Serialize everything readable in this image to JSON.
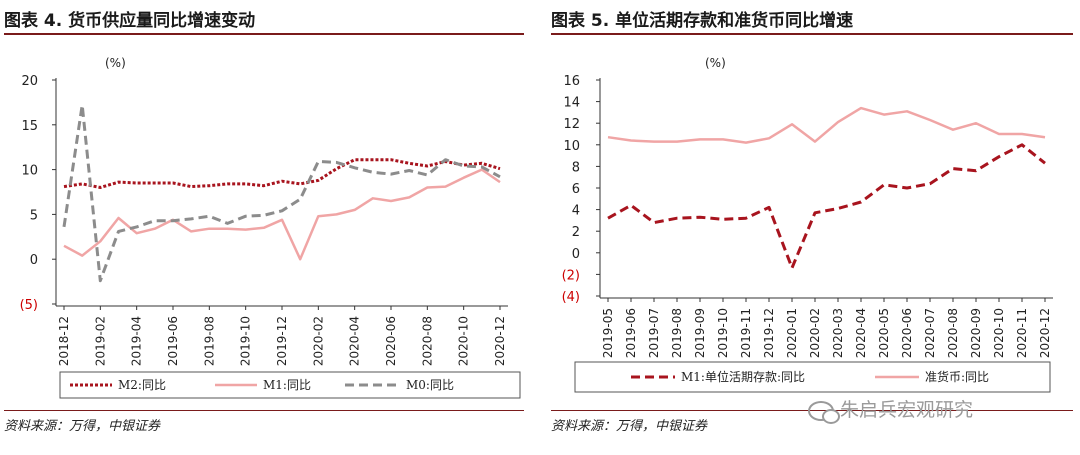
{
  "left_panel": {
    "title": "图表 4. 货币供应量同比增速变动",
    "source": "资料来源：万得，中银证券"
  },
  "right_panel": {
    "title": "图表 5. 单位活期存款和准货币同比增速",
    "source": "资料来源：万得，中银证券"
  },
  "watermark": "朱启兵宏观研究",
  "colors": {
    "dark_red": "#a8141e",
    "pink": "#f0a5a5",
    "gray": "#8c8c8c",
    "negative_label": "#cc0000",
    "rule": "#7a1b1b"
  },
  "chart_data": [
    {
      "type": "line",
      "unit_label": "(%)",
      "ylim": [
        -5,
        20
      ],
      "yticks": [
        20,
        15,
        10,
        5,
        0,
        -5
      ],
      "ytick_labels": [
        "20",
        "15",
        "10",
        "5",
        "0",
        "(5)"
      ],
      "grid": false,
      "legend_position": "bottom",
      "x": [
        "2018-12",
        "2019-01",
        "2019-02",
        "2019-03",
        "2019-04",
        "2019-05",
        "2019-06",
        "2019-07",
        "2019-08",
        "2019-09",
        "2019-10",
        "2019-11",
        "2019-12",
        "2020-01",
        "2020-02",
        "2020-03",
        "2020-04",
        "2020-05",
        "2020-06",
        "2020-07",
        "2020-08",
        "2020-09",
        "2020-10",
        "2020-11",
        "2020-12"
      ],
      "xtick_labels": [
        "2018-12",
        "2019-02",
        "2019-04",
        "2019-06",
        "2019-08",
        "2019-10",
        "2019-12",
        "2020-02",
        "2020-04",
        "2020-06",
        "2020-08",
        "2020-10",
        "2020-12"
      ],
      "series": [
        {
          "name": "M2:同比",
          "style": "dotted",
          "color": "#a8141e",
          "values": [
            8.1,
            8.4,
            8.0,
            8.6,
            8.5,
            8.5,
            8.5,
            8.1,
            8.2,
            8.4,
            8.4,
            8.2,
            8.7,
            8.4,
            8.8,
            10.1,
            11.1,
            11.1,
            11.1,
            10.7,
            10.4,
            10.9,
            10.5,
            10.7,
            10.1
          ]
        },
        {
          "name": "M1:同比",
          "style": "solid",
          "color": "#f0a5a5",
          "values": [
            1.5,
            0.4,
            2.0,
            4.6,
            2.9,
            3.4,
            4.4,
            3.1,
            3.4,
            3.4,
            3.3,
            3.5,
            4.4,
            0.0,
            4.8,
            5.0,
            5.5,
            6.8,
            6.5,
            6.9,
            8.0,
            8.1,
            9.1,
            10.0,
            8.6
          ]
        },
        {
          "name": "M0:同比",
          "style": "dashed",
          "color": "#8c8c8c",
          "values": [
            3.6,
            17.2,
            -2.4,
            3.1,
            3.6,
            4.3,
            4.3,
            4.5,
            4.8,
            4.0,
            4.8,
            4.9,
            5.4,
            6.7,
            10.9,
            10.8,
            10.2,
            9.7,
            9.5,
            9.9,
            9.4,
            11.1,
            10.4,
            10.3,
            9.2
          ]
        }
      ]
    },
    {
      "type": "line",
      "unit_label": "(%)",
      "ylim": [
        -4,
        16
      ],
      "yticks": [
        16,
        14,
        12,
        10,
        8,
        6,
        4,
        2,
        0,
        -2,
        -4
      ],
      "ytick_labels": [
        "16",
        "14",
        "12",
        "10",
        "8",
        "6",
        "4",
        "2",
        "0",
        "(2)",
        "(4)"
      ],
      "grid": false,
      "legend_position": "bottom",
      "x": [
        "2019-05",
        "2019-06",
        "2019-07",
        "2019-08",
        "2019-09",
        "2019-10",
        "2019-11",
        "2019-12",
        "2020-01",
        "2020-02",
        "2020-03",
        "2020-04",
        "2020-05",
        "2020-06",
        "2020-07",
        "2020-08",
        "2020-09",
        "2020-10",
        "2020-11",
        "2020-12"
      ],
      "xtick_labels": [
        "2019-05",
        "2019-06",
        "2019-07",
        "2019-08",
        "2019-09",
        "2019-10",
        "2019-11",
        "2019-12",
        "2020-01",
        "2020-02",
        "2020-03",
        "2020-04",
        "2020-05",
        "2020-06",
        "2020-07",
        "2020-08",
        "2020-09",
        "2020-10",
        "2020-11",
        "2020-12"
      ],
      "series": [
        {
          "name": "M1:单位活期存款:同比",
          "style": "dashed",
          "color": "#a8141e",
          "values": [
            3.2,
            4.4,
            2.8,
            3.2,
            3.3,
            3.1,
            3.2,
            4.2,
            -1.4,
            3.7,
            4.1,
            4.7,
            6.3,
            6.0,
            6.4,
            7.8,
            7.6,
            8.9,
            10.0,
            8.3
          ]
        },
        {
          "name": "准货币:同比",
          "style": "solid",
          "color": "#f0a5a5",
          "values": [
            10.7,
            10.4,
            10.3,
            10.3,
            10.5,
            10.5,
            10.2,
            10.6,
            11.9,
            10.3,
            12.1,
            13.4,
            12.8,
            13.1,
            12.3,
            11.4,
            12.0,
            11.0,
            11.0,
            10.7
          ]
        }
      ]
    }
  ]
}
